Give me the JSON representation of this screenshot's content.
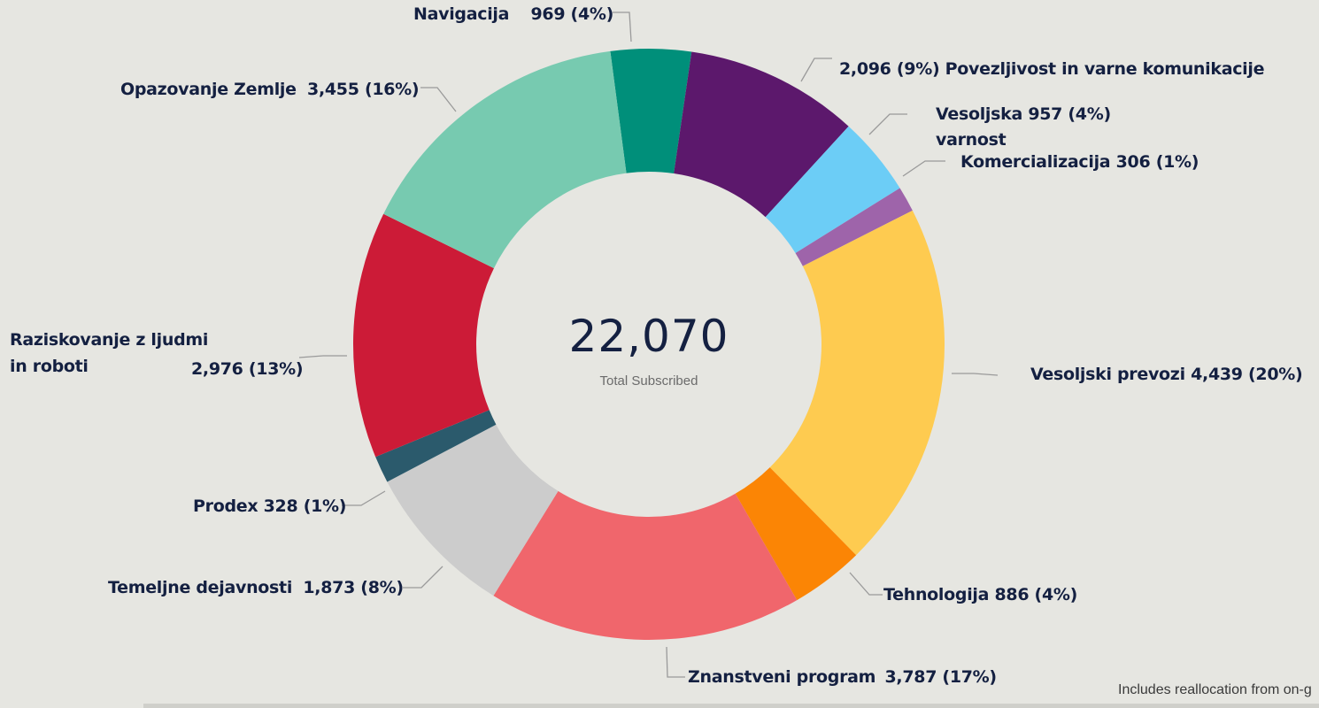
{
  "chart_data": {
    "type": "pie",
    "variant": "donut",
    "center": {
      "value": "22,070",
      "label": "Total Subscribed"
    },
    "unit_note": "values with percentage of total",
    "slices": [
      {
        "name": "Navigacija",
        "value": 969,
        "value_label": "969",
        "pct_label": "(4%)",
        "color": "#008f7a"
      },
      {
        "name": "Povezljivost in varne komunikacije",
        "value": 2096,
        "value_label": "2,096",
        "pct_label": "(9%)",
        "color": "#5c186c"
      },
      {
        "name": "Vesoljska varnost",
        "value": 957,
        "value_label": "957",
        "pct_label": "(4%)",
        "color": "#6ccdf6"
      },
      {
        "name": "Komercializacija",
        "value": 306,
        "value_label": "306",
        "pct_label": "(1%)",
        "color": "#9e64aa"
      },
      {
        "name": "Vesoljski prevozi",
        "value": 4439,
        "value_label": "4,439",
        "pct_label": "(20%)",
        "color": "#fecb50"
      },
      {
        "name": "Tehnologija",
        "value": 886,
        "value_label": "886",
        "pct_label": "(4%)",
        "color": "#fb8505"
      },
      {
        "name": "Znanstveni program",
        "value": 3787,
        "value_label": "3,787",
        "pct_label": "(17%)",
        "color": "#f0666c"
      },
      {
        "name": "Temeljne dejavnosti",
        "value": 1873,
        "value_label": "1,873",
        "pct_label": "(8%)",
        "color": "#cccccc"
      },
      {
        "name": "Prodex",
        "value": 328,
        "value_label": "328",
        "pct_label": "(1%)",
        "color": "#2b5a6c"
      },
      {
        "name": "Raziskovanje z ljudmi in roboti",
        "value": 2976,
        "value_label": "2,976",
        "pct_label": "(13%)",
        "color": "#cc1b37"
      },
      {
        "name": "Opazovanje Zemlje",
        "value": 3455,
        "value_label": "3,455",
        "pct_label": "(16%)",
        "color": "#77cab0"
      }
    ],
    "title": "",
    "legend": "none",
    "footnote": "Includes reallocation from on-g"
  },
  "labels": {
    "navigacija": {
      "name": "Navigacija",
      "val": "969 (4%)"
    },
    "povezljivost": {
      "name": "Povezljivost in varne komunikacije",
      "val": "2,096 (9%)"
    },
    "varnost": {
      "name1": "Vesoljska",
      "name2": "varnost",
      "val": "957 (4%)"
    },
    "komerc": {
      "name": "Komercializacija",
      "val": "306 (1%)"
    },
    "prevozi": {
      "name": "Vesoljski prevozi",
      "val": "4,439 (20%)"
    },
    "tehnologija": {
      "name": "Tehnologija",
      "val": "886 (4%)"
    },
    "znanstveni": {
      "name": "Znanstveni program",
      "val": "3,787 (17%)"
    },
    "temeljne": {
      "name": "Temeljne dejavnosti",
      "val": "1,873 (8%)"
    },
    "prodex": {
      "name": "Prodex",
      "val": "328 (1%)"
    },
    "raziskovanje": {
      "name1": "Raziskovanje z ljudmi",
      "name2": "in roboti",
      "val": "2,976 (13%)"
    },
    "opazovanje": {
      "name": "Opazovanje Zemlje",
      "val": "3,455 (16%)"
    }
  },
  "center": {
    "total": "22,070",
    "caption": "Total Subscribed"
  },
  "footnote": "Includes reallocation from on-g",
  "colors": {
    "background": "#e6e6e1",
    "label_text": "#142041",
    "leader_line": "#9a9a9a"
  }
}
